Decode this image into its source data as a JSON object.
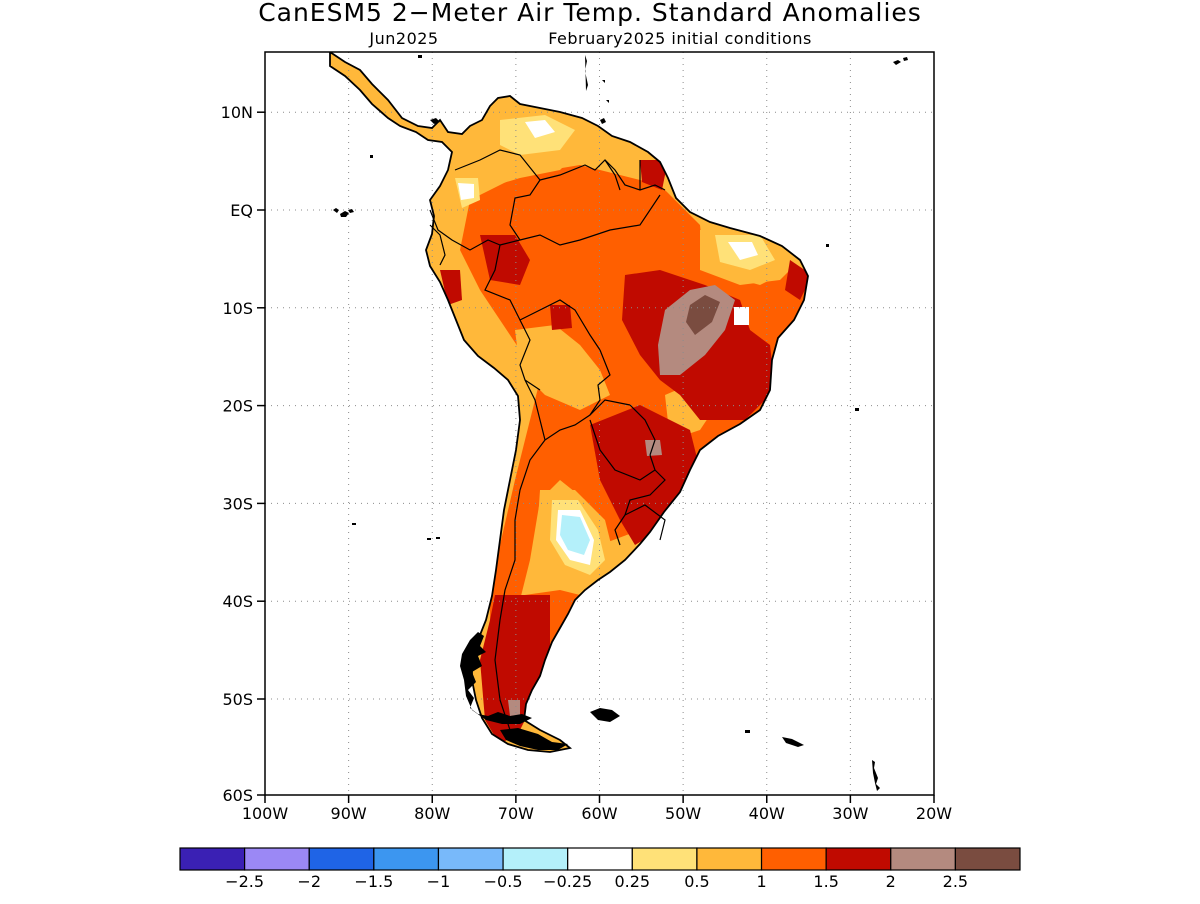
{
  "title": "CanESM5 2−Meter Air Temp. Standard Anomalies",
  "subtitle_left": "Jun2025",
  "subtitle_right": "February2025 initial conditions",
  "lat_labels": [
    "10N",
    "EQ",
    "10S",
    "20S",
    "30S",
    "40S",
    "50S",
    "60S"
  ],
  "lon_labels": [
    "100W",
    "90W",
    "80W",
    "70W",
    "60W",
    "50W",
    "40W",
    "30W",
    "20W"
  ],
  "colorbar": {
    "colors": [
      "#3a20b4",
      "#9b88f5",
      "#1f64e6",
      "#3c96f0",
      "#78b9fa",
      "#b4f0fa",
      "#ffffff",
      "#ffe178",
      "#ffb83a",
      "#ff5f00",
      "#c00a00",
      "#b48a7f",
      "#7a4c40"
    ],
    "labels": [
      "−2.5",
      "−2",
      "−1.5",
      "−1",
      "−0.5",
      "−0.25",
      "0.25",
      "0.5",
      "1",
      "1.5",
      "2",
      "2.5"
    ]
  },
  "colors": {
    "land_base": "#ffb83a",
    "ocean": "#ffffff",
    "coast": "#000000",
    "grid": "#8c8c8c"
  }
}
